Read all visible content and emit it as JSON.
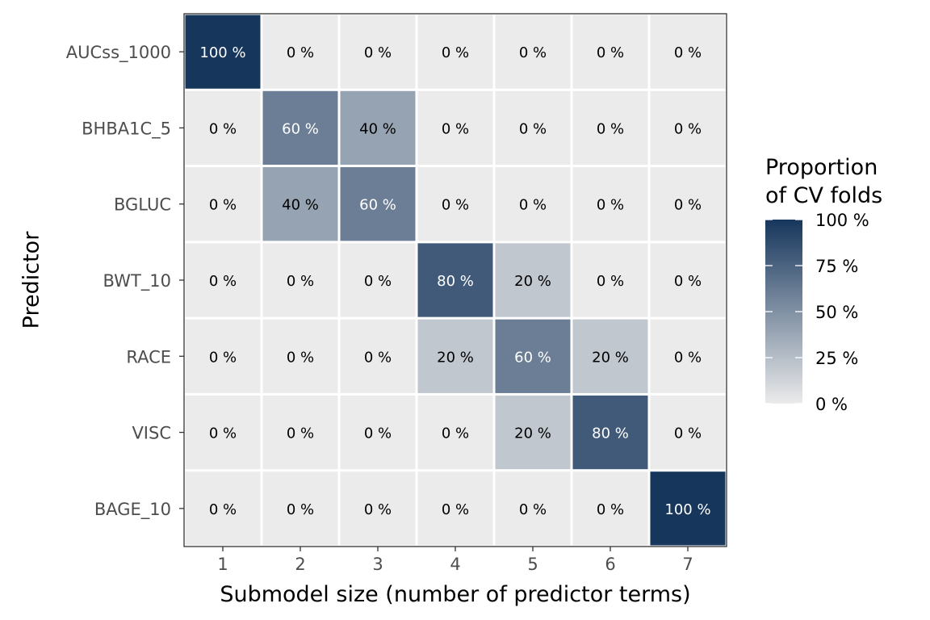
{
  "chart_data": {
    "type": "heatmap",
    "xlabel": "Submodel size (number of predictor terms)",
    "ylabel": "Predictor",
    "x_categories": [
      "1",
      "2",
      "3",
      "4",
      "5",
      "6",
      "7"
    ],
    "y_categories": [
      "AUCss_1000",
      "BHBA1C_5",
      "BGLUC",
      "BWT_10",
      "RACE",
      "VISC",
      "BAGE_10"
    ],
    "values": [
      [
        100,
        0,
        0,
        0,
        0,
        0,
        0
      ],
      [
        0,
        60,
        40,
        0,
        0,
        0,
        0
      ],
      [
        0,
        40,
        60,
        0,
        0,
        0,
        0
      ],
      [
        0,
        0,
        0,
        80,
        20,
        0,
        0
      ],
      [
        0,
        0,
        0,
        20,
        60,
        20,
        0
      ],
      [
        0,
        0,
        0,
        0,
        20,
        80,
        0
      ],
      [
        0,
        0,
        0,
        0,
        0,
        0,
        100
      ]
    ],
    "value_suffix": " %",
    "legend": {
      "title_lines": [
        "Proportion",
        "of CV folds"
      ],
      "breaks": [
        100,
        75,
        50,
        25,
        0
      ],
      "labels": [
        "100 %",
        "75 %",
        "50 %",
        "25 %",
        "0 %"
      ],
      "position": "right"
    },
    "colors": {
      "low": "#ebebeb",
      "high": "#16365c",
      "zero_cell": "#ebebeb",
      "label_dark": "#000000",
      "label_light": "#ffffff"
    },
    "range": [
      0,
      100
    ],
    "grid": false
  }
}
